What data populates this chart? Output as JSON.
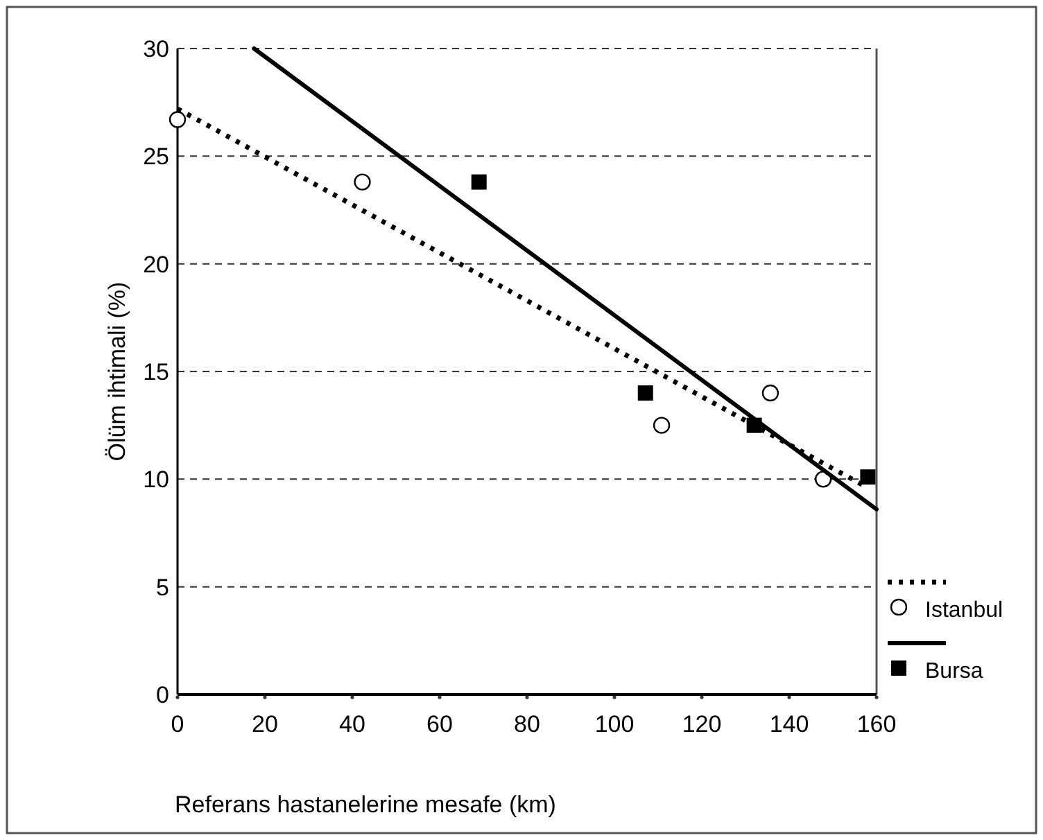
{
  "chart_data": {
    "type": "scatter",
    "xlabel": "Referans hastanelerine mesafe (km)",
    "ylabel": "Ölüm ihtimali (%)",
    "xlim": [
      0,
      160
    ],
    "xticks": [
      0,
      20,
      40,
      60,
      80,
      100,
      120,
      140,
      160
    ],
    "ylim": [
      0,
      30
    ],
    "yticks": [
      0,
      5,
      10,
      15,
      20,
      25,
      30
    ],
    "grid": "y",
    "legend": "bottom right",
    "series": [
      {
        "type": "line",
        "color": "#000000",
        "line_style": "dotted",
        "marker": "none",
        "x": [
          0,
          158
        ],
        "values": [
          27.2,
          9.6
        ]
      },
      {
        "name": "Istanbul",
        "color": "#000000",
        "marker": "circle",
        "x": [
          0,
          42.3,
          110.8,
          135.7,
          147.8
        ],
        "values": [
          26.7,
          23.8,
          12.5,
          14.0,
          10.0
        ]
      },
      {
        "type": "line",
        "color": "#000000",
        "line_style": "solid",
        "marker": "none",
        "x": [
          17.5,
          160
        ],
        "values": [
          30,
          8.6
        ]
      },
      {
        "name": "Bursa",
        "color": "#000000",
        "marker": "square",
        "x": [
          69,
          107.1,
          132,
          158
        ],
        "values": [
          23.8,
          14.0,
          12.5,
          10.1
        ]
      }
    ]
  }
}
